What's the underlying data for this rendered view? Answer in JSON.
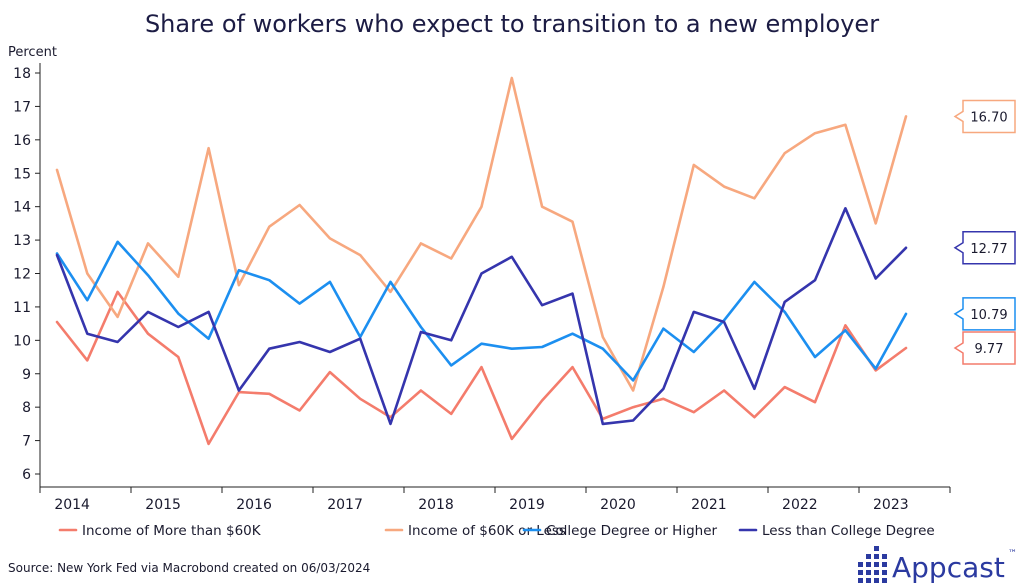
{
  "chart_data": {
    "type": "line",
    "title": "Share of workers who expect to transition to a new employer",
    "ylabel": "Percent",
    "xlabel": "",
    "ylim": [
      6,
      18
    ],
    "y_ticks": [
      "6",
      "7",
      "8",
      "9",
      "10",
      "11",
      "12",
      "13",
      "14",
      "15",
      "16",
      "17",
      "18"
    ],
    "x_tick_labels": [
      "2014",
      "2015",
      "2016",
      "2017",
      "2018",
      "2019",
      "2020",
      "2021",
      "2022",
      "2023"
    ],
    "x_label_index": [
      0.5,
      3.5,
      6.5,
      9.5,
      12.5,
      15.5,
      18.5,
      21.5,
      24.5,
      27.5
    ],
    "grid": false,
    "legend_position": "bottom",
    "series": [
      {
        "name": "Income of More than $60K",
        "color": "#f47c6c",
        "end_label": "9.77",
        "values": [
          10.55,
          9.4,
          11.45,
          10.2,
          9.5,
          6.9,
          8.45,
          8.4,
          7.9,
          9.05,
          8.25,
          7.7,
          8.5,
          7.8,
          9.2,
          7.05,
          8.2,
          9.2,
          7.65,
          8.0,
          8.25,
          7.85,
          8.5,
          7.7,
          8.6,
          8.15,
          10.45,
          9.1,
          9.77
        ]
      },
      {
        "name": "Income of $60K or Less",
        "color": "#f7a87f",
        "end_label": "16.70",
        "values": [
          15.1,
          12.0,
          10.7,
          12.9,
          11.9,
          15.75,
          11.65,
          13.4,
          14.05,
          13.05,
          12.55,
          11.45,
          12.9,
          12.45,
          14.0,
          17.85,
          14.0,
          13.55,
          10.1,
          8.5,
          11.6,
          15.25,
          14.6,
          14.25,
          15.6,
          16.2,
          16.45,
          13.5,
          16.7
        ]
      },
      {
        "name": "College Degree or Higher",
        "color": "#1c8ff0",
        "end_label": "10.79",
        "values": [
          12.6,
          11.2,
          12.95,
          11.95,
          10.8,
          10.05,
          12.1,
          11.8,
          11.1,
          11.75,
          10.1,
          11.75,
          10.4,
          9.25,
          9.9,
          9.75,
          9.8,
          10.2,
          9.75,
          8.8,
          10.35,
          9.65,
          10.6,
          11.75,
          10.85,
          9.5,
          10.3,
          9.15,
          10.79
        ]
      },
      {
        "name": "Less than College Degree",
        "color": "#3535ad",
        "end_label": "12.77",
        "values": [
          12.55,
          10.2,
          9.95,
          10.85,
          10.4,
          10.85,
          8.5,
          9.75,
          9.95,
          9.65,
          10.05,
          7.5,
          10.25,
          10.0,
          12.0,
          12.5,
          11.05,
          11.4,
          7.5,
          7.6,
          8.55,
          10.85,
          10.55,
          8.55,
          11.15,
          11.8,
          13.95,
          11.85,
          12.77
        ]
      }
    ]
  },
  "source": "Source: New York Fed via Macrobond created on 06/03/2024",
  "brand": {
    "name": "Appcast",
    "trademark": "™",
    "color": "#2b3aa0"
  }
}
